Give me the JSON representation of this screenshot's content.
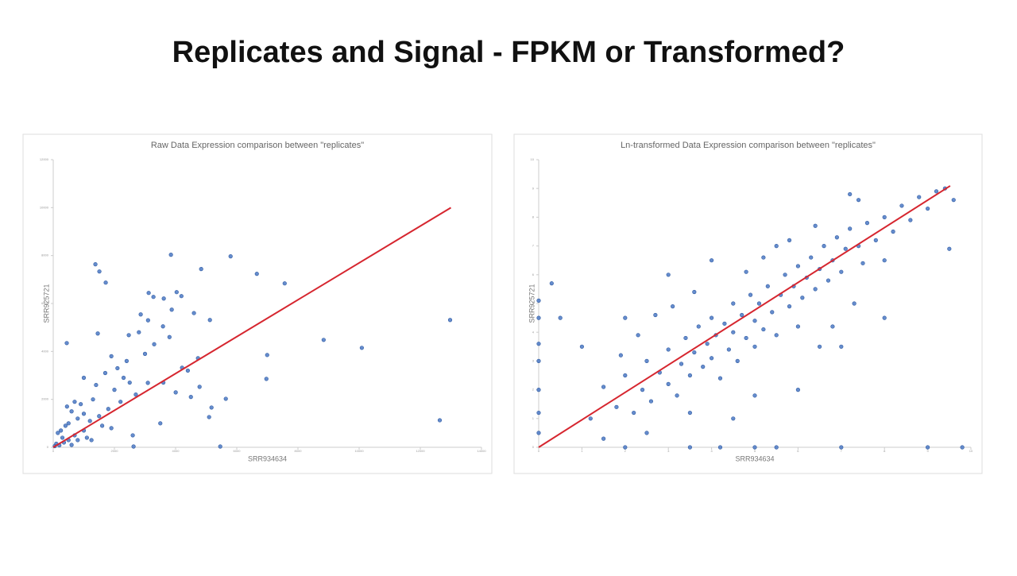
{
  "title": "Replicates and Signal - FPKM or Transformed?",
  "chart_data": [
    {
      "type": "scatter",
      "title": "Raw Data Expression comparison between \"replicates\"",
      "x_label": "SRR934634",
      "y_label": "SRR925721",
      "xlim": [
        0,
        14000
      ],
      "ylim": [
        0,
        12000
      ],
      "xticks": [
        0,
        2000,
        4000,
        6000,
        8000,
        10000,
        12000,
        14000
      ],
      "yticks": [
        0,
        2000,
        4000,
        6000,
        8000,
        10000,
        12000
      ],
      "points": {
        "color": "#4a78c4",
        "x": [
          1378,
          1508,
          1716,
          3848,
          5798,
          4836,
          6656,
          7566,
          3120,
          3276,
          3614,
          4034,
          4190,
          3874,
          5122,
          2860,
          3588,
          1456,
          2470,
          442,
          8840,
          10088,
          12974,
          6994,
          6968,
          4732,
          4212,
          3094,
          4784,
          4004,
          5642,
          5174,
          5096,
          12636,
          5460,
          2626,
          100,
          200,
          300,
          150,
          500,
          400,
          700,
          800,
          1000,
          600,
          1200,
          900,
          1500,
          1300,
          1800,
          2000,
          1100,
          1600,
          2200,
          2500,
          1400,
          1700,
          2100,
          2400,
          2700,
          3000,
          3300,
          2800,
          1900,
          2300,
          500,
          250,
          350,
          50,
          700,
          1000,
          1250,
          450,
          3500,
          3600,
          4400,
          4600,
          2600,
          3100,
          1000,
          600,
          800,
          1900,
          3800,
          4500
        ],
        "y": [
          7636,
          7337,
          6872,
          8034,
          7968,
          7437,
          7238,
          6839,
          6441,
          6275,
          6208,
          6474,
          6308,
          5743,
          5312,
          5544,
          5046,
          4748,
          4681,
          4349,
          4482,
          4150,
          5312,
          3851,
          2855,
          3718,
          3320,
          2689,
          2523,
          2291,
          2025,
          1660,
          1262,
          1129,
          33,
          33,
          150,
          80,
          400,
          600,
          300,
          900,
          500,
          1200,
          700,
          1500,
          1100,
          1800,
          1300,
          2000,
          1600,
          2400,
          400,
          900,
          1900,
          2700,
          2600,
          3100,
          3300,
          3600,
          2200,
          3900,
          4300,
          4800,
          3800,
          2900,
          1000,
          700,
          200,
          50,
          1900,
          1400,
          300,
          1700,
          1000,
          2700,
          3200,
          5600,
          500,
          5300,
          2900,
          100,
          300,
          800,
          4600,
          2100
        ]
      },
      "trendline": {
        "color": "#d6262f",
        "x": [
          0,
          13000
        ],
        "y": [
          0,
          10000
        ]
      }
    },
    {
      "type": "scatter",
      "title": "Ln-transformed Data Expression comparison between \"replicates\"",
      "x_label": "SRR934634",
      "y_label": "SRR925721",
      "xlim": [
        0,
        10
      ],
      "ylim": [
        0,
        10
      ],
      "xticks": [
        0,
        1,
        2,
        3,
        4,
        5,
        6,
        7,
        8,
        9,
        10
      ],
      "yticks": [
        0,
        1,
        2,
        3,
        4,
        5,
        6,
        7,
        8,
        9,
        10
      ],
      "points": {
        "color": "#4a78c4",
        "x": [
          1.2,
          1.5,
          1.8,
          2.0,
          2.2,
          2.4,
          2.5,
          2.6,
          2.8,
          3.0,
          3.0,
          3.2,
          3.3,
          3.4,
          3.5,
          3.6,
          3.7,
          3.8,
          3.9,
          4.0,
          4.0,
          4.1,
          4.2,
          4.3,
          4.4,
          4.5,
          4.5,
          4.6,
          4.7,
          4.8,
          4.9,
          5.0,
          5.0,
          5.1,
          5.2,
          5.3,
          5.4,
          5.5,
          5.6,
          5.7,
          5.8,
          5.9,
          6.0,
          6.1,
          6.2,
          6.3,
          6.4,
          6.5,
          6.6,
          6.7,
          6.8,
          6.9,
          7.0,
          7.1,
          7.2,
          7.4,
          7.5,
          7.6,
          7.8,
          8.0,
          8.2,
          8.4,
          8.6,
          8.8,
          9.0,
          9.2,
          9.4,
          9.6,
          7.2,
          7.4,
          9.5,
          8.0,
          6.0,
          5.5,
          3.0,
          2.0,
          4.0,
          1.0,
          0.3,
          0.5,
          6.5,
          7.0,
          8.0,
          6.0,
          5.0,
          4.5,
          2.5,
          1.5,
          3.5,
          6.8,
          7.3,
          2.3,
          3.1,
          1.9,
          4.8,
          5.2,
          5.8,
          6.4,
          3.6,
          2.7,
          0,
          0,
          0,
          0,
          0,
          0,
          0,
          2.0,
          3.5,
          4.2,
          5.5,
          7.0,
          9.0,
          9.8,
          5.0
        ],
        "y": [
          1.0,
          2.1,
          1.4,
          2.5,
          1.2,
          2.0,
          3.0,
          1.6,
          2.6,
          2.2,
          3.4,
          1.8,
          2.9,
          3.8,
          2.5,
          3.3,
          4.2,
          2.8,
          3.6,
          4.5,
          3.1,
          3.9,
          2.4,
          4.3,
          3.4,
          5.0,
          4.0,
          3.0,
          4.6,
          3.8,
          5.3,
          4.4,
          3.5,
          5.0,
          4.1,
          5.6,
          4.7,
          3.9,
          5.3,
          6.0,
          4.9,
          5.6,
          6.3,
          5.2,
          5.9,
          6.6,
          5.5,
          6.2,
          7.0,
          5.8,
          6.5,
          7.3,
          6.1,
          6.9,
          7.6,
          7.0,
          6.4,
          7.8,
          7.2,
          8.0,
          7.5,
          8.4,
          7.9,
          8.7,
          8.3,
          8.9,
          9.0,
          8.6,
          8.8,
          8.6,
          6.9,
          6.5,
          4.2,
          7.0,
          6.0,
          4.5,
          6.5,
          3.5,
          5.7,
          4.5,
          3.5,
          3.5,
          4.5,
          2.0,
          1.8,
          1.0,
          0.5,
          0.3,
          1.2,
          4.2,
          5.0,
          3.9,
          4.9,
          3.2,
          6.1,
          6.6,
          7.2,
          7.7,
          5.4,
          4.6,
          2.0,
          3.0,
          4.5,
          5.1,
          1.2,
          0.5,
          3.6,
          0,
          0,
          0,
          0,
          0,
          0,
          0,
          0
        ]
      },
      "trendline": {
        "color": "#d6262f",
        "x": [
          0,
          9.52
        ],
        "y": [
          0,
          9.09
        ]
      }
    }
  ]
}
